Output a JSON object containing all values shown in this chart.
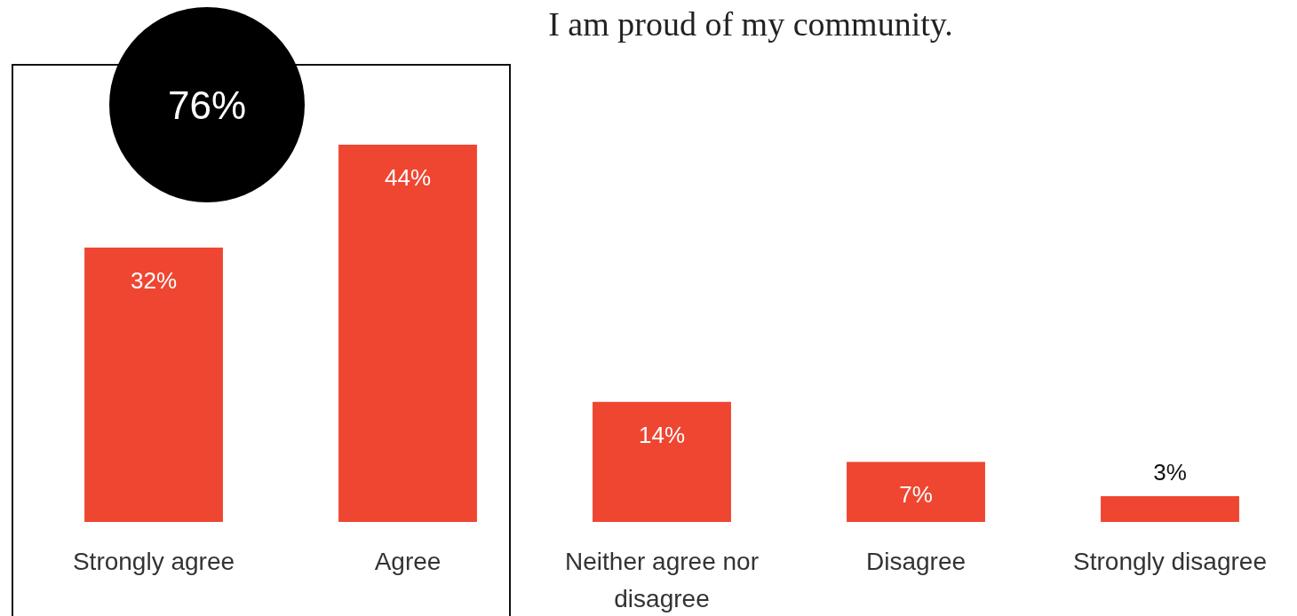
{
  "chart_data": {
    "type": "bar",
    "title": "I am proud of my community.",
    "categories": [
      "Strongly agree",
      "Agree",
      "Neither agree nor disagree",
      "Disagree",
      "Strongly disagree"
    ],
    "values": [
      32,
      44,
      14,
      7,
      3
    ],
    "color": "#ef4631",
    "data_labels": true,
    "value_labels": [
      "32%",
      "44%",
      "14%",
      "7%",
      "3%"
    ],
    "annotations": [
      "76%"
    ]
  }
}
